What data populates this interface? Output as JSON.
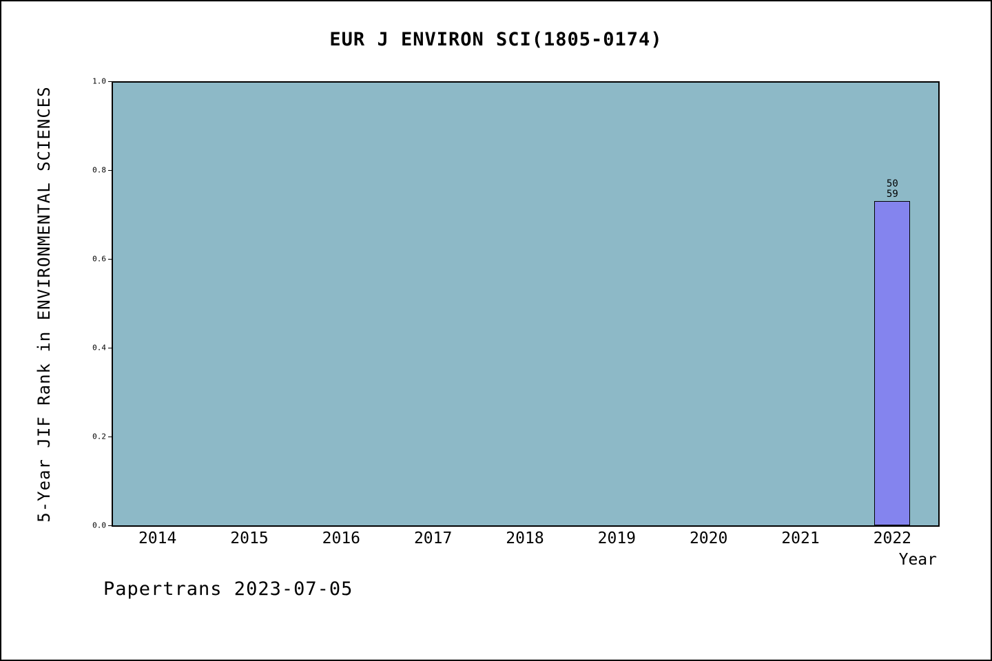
{
  "chart_data": {
    "type": "bar",
    "title": "EUR J ENVIRON SCI(1805-0174)",
    "xlabel": "Year",
    "ylabel": "5-Year JIF Rank in ENVIRONMENTAL SCIENCES",
    "categories": [
      "2014",
      "2015",
      "2016",
      "2017",
      "2018",
      "2019",
      "2020",
      "2021",
      "2022"
    ],
    "values": [
      null,
      null,
      null,
      null,
      null,
      null,
      null,
      null,
      0.73
    ],
    "annotations": [
      {
        "category": "2022",
        "lines": [
          "50",
          "59"
        ]
      }
    ],
    "ylim": [
      0,
      1
    ],
    "ytick_labels": [
      "0.0",
      "0.2",
      "0.4",
      "0.6",
      "0.8",
      "1.0"
    ],
    "yticks": [
      0.0,
      0.2,
      0.4,
      0.6,
      0.8,
      1.0
    ],
    "grid": false,
    "legend": "none",
    "plot_background_color": "#8db9c7",
    "bar_color": "#8484ee"
  },
  "footer": {
    "text": "Papertrans 2023-07-05"
  }
}
